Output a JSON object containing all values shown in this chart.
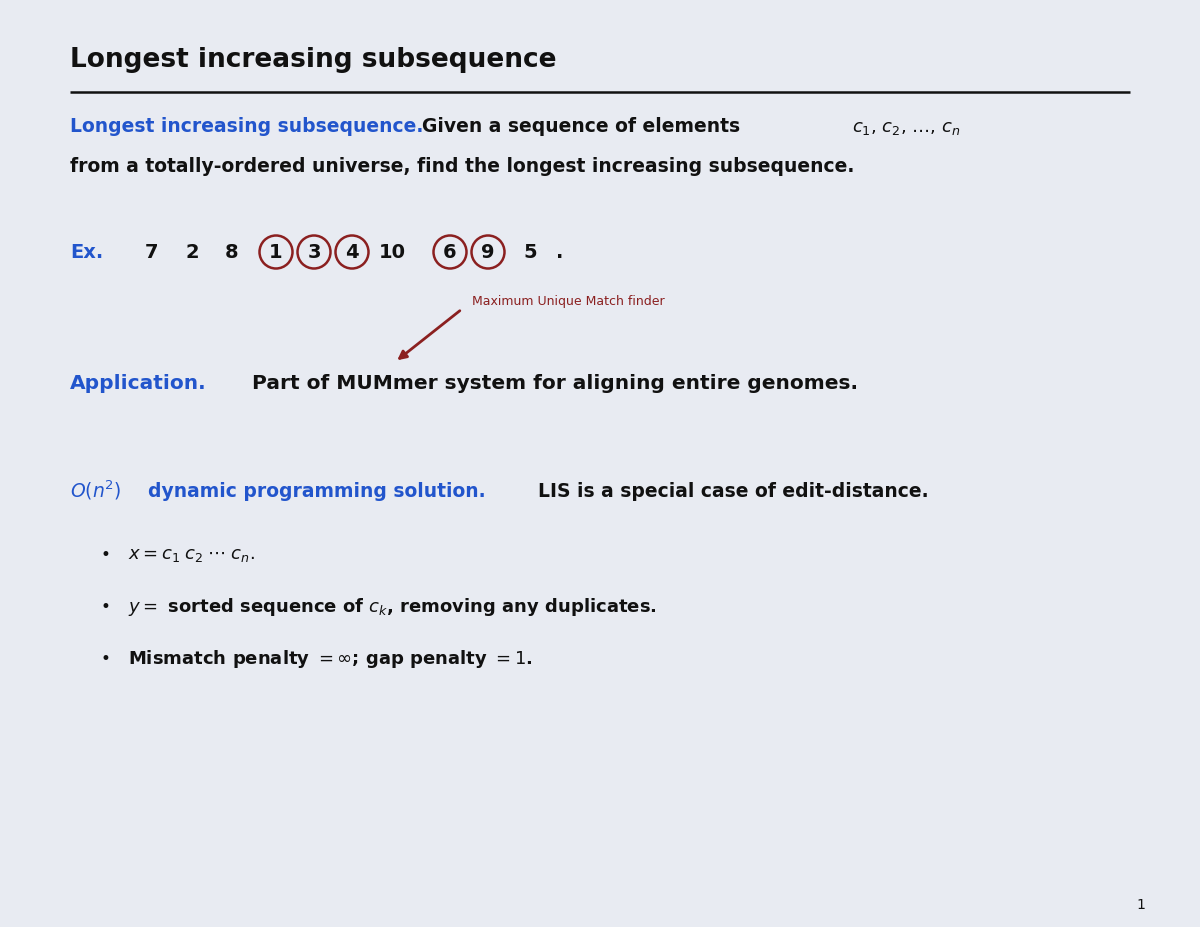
{
  "title": "Longest increasing subsequence",
  "bg_color": "#E8EBF2",
  "blue_color": "#2255CC",
  "dark_red_color": "#8B2020",
  "black_color": "#111111",
  "page_num": "1",
  "nums": [
    "7",
    "2",
    "8",
    "1",
    "3",
    "4",
    "10",
    "6",
    "9",
    "5"
  ],
  "circled_indices": [
    3,
    4,
    5,
    7,
    8
  ],
  "arrow_label": "Maximum Unique Match finder",
  "fig_width": 12.0,
  "fig_height": 9.27,
  "dpi": 100
}
